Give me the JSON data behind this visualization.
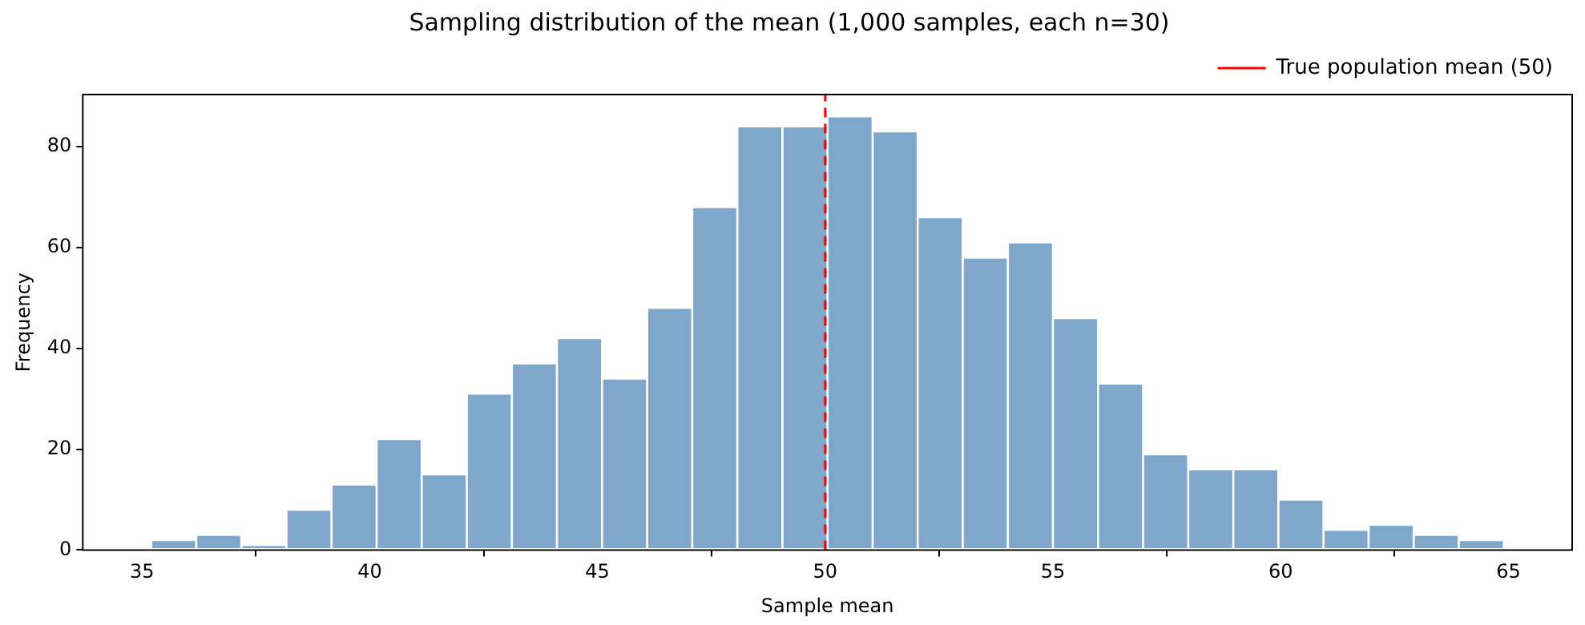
{
  "chart_data": {
    "type": "histogram",
    "title": "Sampling distribution of the mean (1,000 samples, each n=30)",
    "xlabel": "Sample mean",
    "ylabel": "Frequency",
    "bins": [
      35.2,
      36.19,
      37.18,
      38.17,
      39.16,
      40.15,
      41.14,
      42.13,
      43.12,
      44.11,
      45.1,
      46.09,
      47.08,
      48.07,
      49.06,
      50.05,
      51.04,
      52.03,
      53.02,
      54.01,
      55.0,
      55.99,
      56.98,
      57.97,
      58.96,
      59.95,
      60.94,
      61.93,
      62.92,
      63.91,
      64.9
    ],
    "values": [
      2,
      3,
      1,
      8,
      13,
      22,
      15,
      31,
      37,
      42,
      34,
      48,
      68,
      84,
      84,
      86,
      83,
      66,
      58,
      61,
      46,
      33,
      19,
      16,
      16,
      10,
      4,
      5,
      3,
      2
    ],
    "color": "#7ea7cb",
    "xlim": [
      33.7,
      66.4
    ],
    "xticks": [
      35,
      40,
      45,
      50,
      55,
      60,
      65
    ],
    "ylim": [
      0,
      90.3
    ],
    "yticks": [
      0,
      20,
      40,
      60,
      80
    ],
    "ref_lines": [
      {
        "axis": "x",
        "value": 50,
        "label": "True population mean (50)",
        "color": "#ff0000",
        "line_style": "dashed"
      }
    ],
    "legend": "top right",
    "grid": false
  }
}
